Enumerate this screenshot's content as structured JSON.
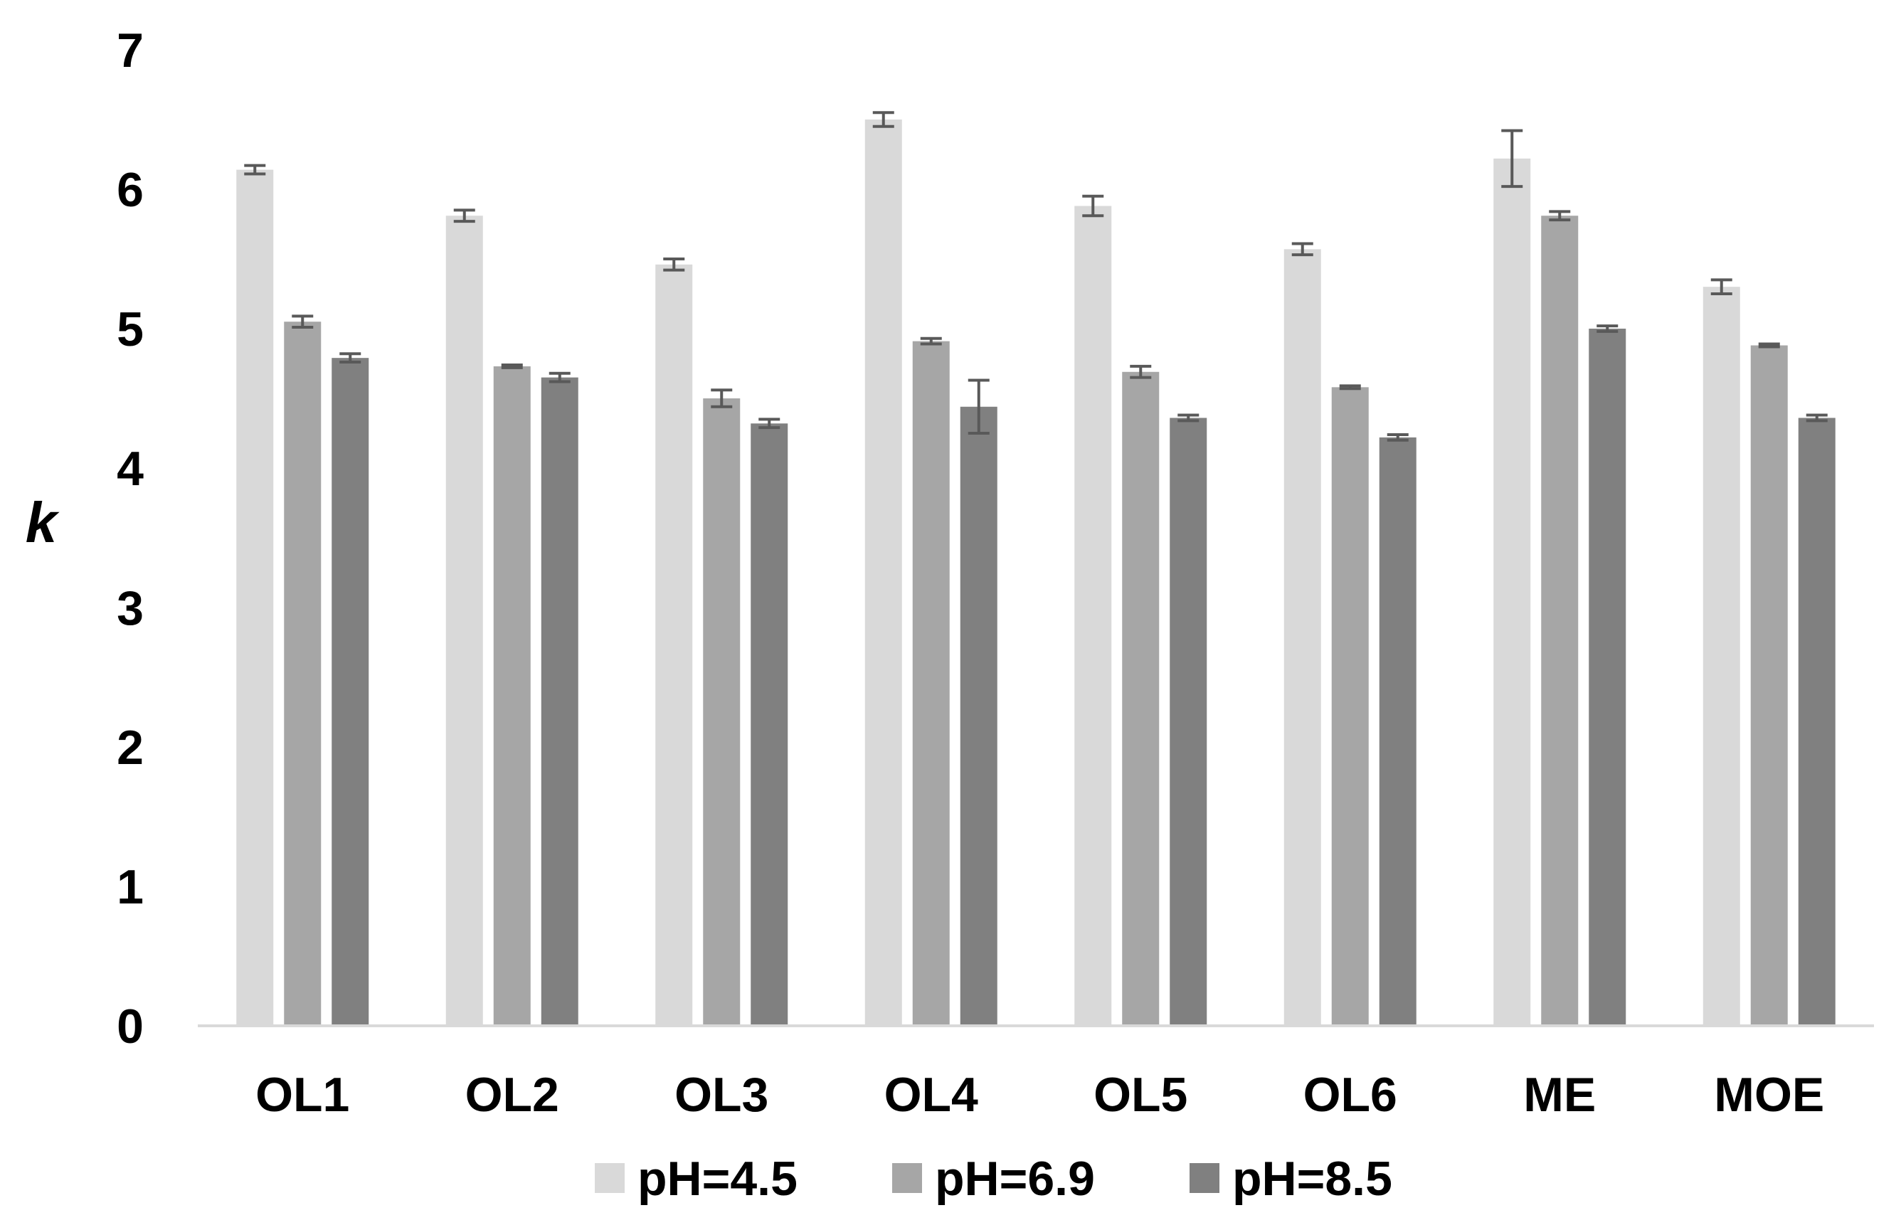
{
  "chart_data": {
    "type": "bar",
    "title": "",
    "xlabel": "",
    "ylabel": "k",
    "ylim": [
      0,
      7
    ],
    "yticks": [
      0,
      1,
      2,
      3,
      4,
      5,
      6,
      7
    ],
    "ytick_labels": [
      "0",
      "1",
      "2",
      "3",
      "4",
      "5",
      "6",
      "7"
    ],
    "grid": false,
    "legend_position": "bottom",
    "categories": [
      "OL1",
      "OL2",
      "OL3",
      "OL4",
      "OL5",
      "OL6",
      "ME",
      "MOE"
    ],
    "series": [
      {
        "name": "pH=4.5",
        "color": "#d9d9d9",
        "values": [
          6.14,
          5.81,
          5.46,
          6.5,
          5.88,
          5.57,
          6.22,
          5.3
        ],
        "errors": [
          0.03,
          0.04,
          0.04,
          0.05,
          0.07,
          0.04,
          0.2,
          0.05
        ]
      },
      {
        "name": "pH=6.9",
        "color": "#a6a6a6",
        "values": [
          5.05,
          4.73,
          4.5,
          4.91,
          4.69,
          4.58,
          5.81,
          4.88
        ],
        "errors": [
          0.04,
          0.01,
          0.06,
          0.02,
          0.04,
          0.01,
          0.03,
          0.01
        ]
      },
      {
        "name": "pH=8.5",
        "color": "#808080",
        "values": [
          4.79,
          4.65,
          4.32,
          4.44,
          4.36,
          4.22,
          5.0,
          4.36
        ],
        "errors": [
          0.03,
          0.03,
          0.03,
          0.19,
          0.02,
          0.02,
          0.02,
          0.02
        ]
      }
    ],
    "axis_color": "#d9d9d9",
    "errorbar_color": "#595959"
  }
}
